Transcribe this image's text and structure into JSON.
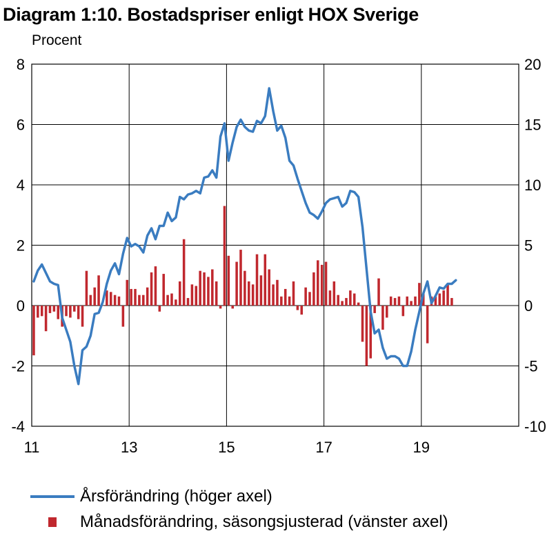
{
  "title": "Diagram 1:10. Bostadspriser enligt HOX Sverige",
  "unit": "Procent",
  "chart_data": {
    "type": "bar+line",
    "title": "Diagram 1:10. Bostadspriser enligt HOX Sverige",
    "ylabel": "Procent",
    "x_ticks": [
      "11",
      "13",
      "15",
      "17",
      "19"
    ],
    "x_range": [
      2011,
      2021
    ],
    "left_axis": {
      "range": [
        -4,
        8
      ],
      "ticks": [
        "-4",
        "-2",
        "0",
        "2",
        "4",
        "6",
        "8"
      ]
    },
    "right_axis": {
      "range": [
        -10,
        20
      ],
      "ticks": [
        "-10",
        "-5",
        "0",
        "5",
        "10",
        "15",
        "20"
      ]
    },
    "grid": true,
    "legend_position": "bottom",
    "colors": {
      "line": "#3a7cc0",
      "bar": "#c0282e"
    },
    "series": [
      {
        "name": "Årsförändring (höger axel)",
        "type": "line",
        "axis": "right",
        "start": "2011-01",
        "step": "month",
        "values": [
          2.0,
          2.9,
          3.4,
          2.7,
          2.0,
          1.8,
          1.7,
          -1.0,
          -2.0,
          -3.0,
          -5.0,
          -6.5,
          -3.7,
          -3.4,
          -2.5,
          -0.7,
          -0.6,
          0.3,
          1.8,
          2.9,
          3.5,
          2.6,
          4.3,
          5.6,
          4.9,
          5.1,
          4.9,
          4.4,
          5.8,
          6.4,
          5.5,
          6.6,
          6.6,
          7.7,
          7.0,
          7.3,
          9.0,
          8.8,
          9.2,
          9.3,
          9.5,
          9.3,
          10.6,
          10.7,
          11.2,
          10.6,
          14.0,
          15.1,
          12.0,
          13.5,
          14.8,
          15.4,
          14.8,
          14.5,
          14.4,
          15.3,
          15.1,
          15.7,
          18.0,
          16.1,
          14.5,
          14.9,
          13.9,
          12.0,
          11.6,
          10.5,
          9.5,
          8.5,
          7.7,
          7.5,
          7.2,
          7.8,
          8.5,
          8.8,
          8.9,
          9.0,
          8.2,
          8.5,
          9.5,
          9.4,
          9.0,
          6.5,
          3.0,
          -0.5,
          -2.3,
          -2.0,
          -3.5,
          -4.4,
          -4.2,
          -4.2,
          -4.4,
          -5.0,
          -5.0,
          -3.8,
          -2.0,
          -0.5,
          1.0,
          2.0,
          0.2,
          0.8,
          1.5,
          1.4,
          1.8,
          1.8,
          2.1
        ]
      },
      {
        "name": "Månadsförändring, säsongsjusterad (vänster axel)",
        "type": "bar",
        "axis": "left",
        "start": "2011-01",
        "step": "month",
        "values": [
          -1.65,
          -0.4,
          -0.35,
          -0.85,
          -0.25,
          -0.2,
          -0.45,
          -0.7,
          -0.35,
          -0.4,
          -0.2,
          -0.45,
          -0.7,
          1.15,
          0.35,
          0.6,
          1.0,
          0.0,
          0.5,
          0.45,
          0.35,
          0.3,
          -0.7,
          0.85,
          0.55,
          0.55,
          0.35,
          0.35,
          0.6,
          1.1,
          1.3,
          -0.2,
          1.05,
          0.35,
          0.4,
          0.2,
          0.8,
          2.2,
          0.25,
          0.7,
          0.65,
          1.15,
          1.1,
          0.95,
          1.2,
          0.8,
          -0.1,
          3.3,
          1.65,
          -0.1,
          1.45,
          1.85,
          1.15,
          0.8,
          0.7,
          1.7,
          1.0,
          1.7,
          1.2,
          0.7,
          0.85,
          0.3,
          0.55,
          0.3,
          0.8,
          -0.15,
          -0.3,
          0.6,
          0.45,
          1.1,
          1.5,
          1.35,
          1.45,
          0.5,
          0.8,
          0.35,
          0.15,
          0.25,
          0.5,
          0.4,
          0.1,
          -1.2,
          -2.0,
          -1.75,
          -0.25,
          0.9,
          -0.8,
          -0.4,
          0.3,
          0.25,
          0.3,
          -0.35,
          0.3,
          0.15,
          0.3,
          0.75,
          0.4,
          -1.25,
          0.3,
          0.3,
          0.4,
          0.5,
          0.7,
          0.25
        ]
      }
    ]
  },
  "legend": {
    "line_label": "Årsförändring (höger axel)",
    "bar_label": "Månadsförändring, säsongsjusterad (vänster axel)"
  }
}
